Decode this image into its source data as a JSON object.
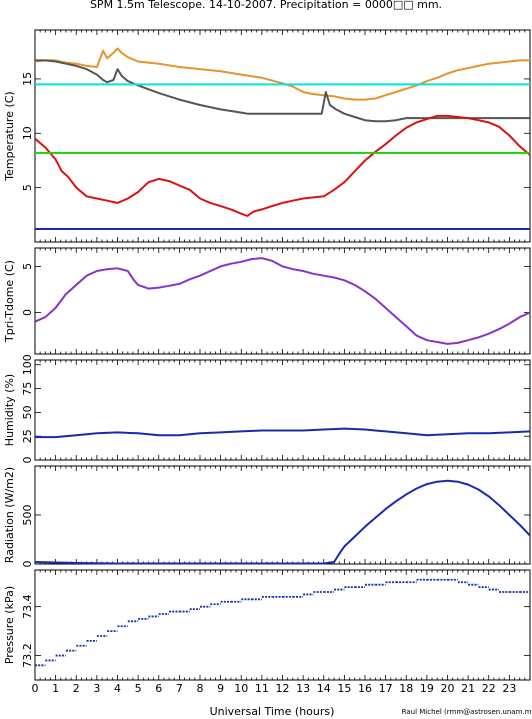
{
  "title": "SPM 1.5m Telescope. 14-10-2007. Precipitation = 0000□□ mm.",
  "xlabel": "Universal Time (hours)",
  "credit": "Raul Michel (rmm@astrosen.unam.mx)",
  "x_ticks": [
    0,
    1,
    2,
    3,
    4,
    5,
    6,
    7,
    8,
    9,
    10,
    11,
    12,
    13,
    14,
    15,
    16,
    17,
    18,
    19,
    20,
    21,
    22,
    23
  ],
  "chart_data": [
    {
      "type": "line",
      "ylabel": "Temperature (C)",
      "xlim": [
        0,
        24
      ],
      "ylim": [
        0,
        19.5
      ],
      "y_ticks": [
        5,
        10,
        15
      ],
      "series": [
        {
          "color": "#e8922a",
          "x": [
            0,
            0.5,
            1,
            1.5,
            2,
            2.5,
            3,
            3.3,
            3.5,
            3.8,
            4,
            4.2,
            4.5,
            5,
            6,
            7,
            8,
            9,
            10,
            11,
            12,
            12.5,
            13,
            13.5,
            14,
            14.5,
            15,
            15.5,
            16,
            16.5,
            17,
            17.5,
            18,
            18.5,
            19,
            19.5,
            20,
            20.5,
            21,
            21.5,
            22,
            22.5,
            23,
            23.5,
            24
          ],
          "y": [
            16.6,
            16.7,
            16.7,
            16.5,
            16.4,
            16.2,
            16.1,
            17.6,
            16.9,
            17.4,
            17.8,
            17.4,
            17.0,
            16.6,
            16.4,
            16.1,
            15.9,
            15.7,
            15.4,
            15.1,
            14.6,
            14.3,
            13.8,
            13.6,
            13.5,
            13.4,
            13.2,
            13.1,
            13.1,
            13.2,
            13.5,
            13.8,
            14.1,
            14.4,
            14.8,
            15.1,
            15.5,
            15.8,
            16.0,
            16.2,
            16.4,
            16.5,
            16.6,
            16.7,
            16.7
          ]
        },
        {
          "color": "#555555",
          "x": [
            0,
            0.5,
            1,
            1.5,
            2,
            2.5,
            3,
            3.3,
            3.5,
            3.8,
            4,
            4.2,
            4.5,
            5,
            6,
            7,
            8,
            9,
            10,
            10.3,
            11,
            12,
            13,
            13.5,
            13.9,
            14.1,
            14.3,
            14.6,
            15,
            15.5,
            16,
            16.5,
            17,
            17.5,
            18,
            19,
            20,
            21,
            22,
            23,
            24
          ],
          "y": [
            16.7,
            16.7,
            16.6,
            16.4,
            16.2,
            15.9,
            15.4,
            14.9,
            14.7,
            14.9,
            15.9,
            15.3,
            14.8,
            14.4,
            13.7,
            13.1,
            12.6,
            12.2,
            11.9,
            11.8,
            11.8,
            11.8,
            11.8,
            11.8,
            11.8,
            13.8,
            12.6,
            12.2,
            11.8,
            11.5,
            11.2,
            11.1,
            11.1,
            11.2,
            11.4,
            11.4,
            11.4,
            11.4,
            11.4,
            11.4,
            11.4
          ]
        },
        {
          "color": "#00e5e5",
          "x": [
            0,
            24
          ],
          "y": [
            14.5,
            14.5
          ]
        },
        {
          "color": "#dd1111",
          "x": [
            0,
            0.5,
            1,
            1.3,
            1.6,
            2,
            2.5,
            3,
            3.5,
            4,
            4.5,
            5,
            5.5,
            6,
            6.5,
            7,
            7.5,
            8,
            8.5,
            9,
            9.5,
            10,
            10.3,
            10.6,
            11,
            11.5,
            12,
            12.5,
            13,
            13.5,
            14,
            14.5,
            15,
            15.5,
            16,
            16.5,
            17,
            17.5,
            18,
            18.5,
            19,
            19.5,
            20,
            20.5,
            21,
            21.5,
            22,
            22.5,
            23,
            23.5,
            24
          ],
          "y": [
            9.5,
            8.7,
            7.6,
            6.5,
            6.0,
            5.0,
            4.2,
            4.0,
            3.8,
            3.6,
            4.0,
            4.6,
            5.5,
            5.8,
            5.6,
            5.2,
            4.8,
            4.0,
            3.6,
            3.3,
            3.0,
            2.6,
            2.4,
            2.8,
            3.0,
            3.3,
            3.6,
            3.8,
            4.0,
            4.1,
            4.2,
            4.8,
            5.5,
            6.5,
            7.5,
            8.3,
            9.0,
            9.8,
            10.5,
            11.0,
            11.3,
            11.6,
            11.6,
            11.5,
            11.4,
            11.2,
            11.0,
            10.6,
            9.8,
            8.8,
            8.0
          ]
        },
        {
          "color": "#22cc11",
          "x": [
            0,
            24
          ],
          "y": [
            8.2,
            8.2
          ]
        },
        {
          "color": "#1a2ab0",
          "x": [
            0,
            24
          ],
          "y": [
            1.2,
            1.2
          ]
        }
      ]
    },
    {
      "type": "line",
      "ylabel": "Tpri-Tdome (C)",
      "xlim": [
        0,
        24
      ],
      "ylim": [
        -4.5,
        7
      ],
      "y_ticks": [
        0,
        5
      ],
      "series": [
        {
          "color": "#8833cc",
          "x": [
            0,
            0.5,
            1,
            1.5,
            2,
            2.5,
            3,
            3.5,
            4,
            4.5,
            4.8,
            5,
            5.5,
            6,
            6.5,
            7,
            7.5,
            8,
            8.5,
            9,
            9.5,
            10,
            10.5,
            11,
            11.5,
            12,
            12.5,
            13,
            13.5,
            14,
            14.5,
            15,
            15.5,
            16,
            16.5,
            17,
            17.5,
            18,
            18.5,
            19,
            19.5,
            20,
            20.5,
            21,
            21.5,
            22,
            22.5,
            23,
            23.5,
            24
          ],
          "y": [
            -1.0,
            -0.5,
            0.5,
            2.0,
            3.0,
            4.0,
            4.5,
            4.7,
            4.8,
            4.5,
            3.5,
            3.0,
            2.6,
            2.7,
            2.9,
            3.1,
            3.6,
            4.0,
            4.5,
            5.0,
            5.3,
            5.5,
            5.8,
            5.9,
            5.6,
            5.0,
            4.7,
            4.5,
            4.2,
            4.0,
            3.8,
            3.5,
            3.0,
            2.3,
            1.5,
            0.5,
            -0.5,
            -1.5,
            -2.5,
            -3.0,
            -3.2,
            -3.4,
            -3.3,
            -3.0,
            -2.7,
            -2.3,
            -1.8,
            -1.2,
            -0.5,
            0.0
          ]
        }
      ]
    },
    {
      "type": "line",
      "ylabel": "Humidity (%)",
      "xlim": [
        0,
        24
      ],
      "ylim": [
        0,
        105
      ],
      "y_ticks": [
        0,
        25,
        50,
        75,
        100
      ],
      "series": [
        {
          "color": "#1a2ab0",
          "x": [
            0,
            1,
            2,
            3,
            4,
            5,
            6,
            7,
            8,
            9,
            10,
            11,
            12,
            13,
            14,
            15,
            16,
            17,
            18,
            19,
            20,
            21,
            22,
            23,
            24
          ],
          "y": [
            24,
            24,
            26,
            28,
            29,
            28,
            26,
            26,
            28,
            29,
            30,
            31,
            31,
            31,
            32,
            33,
            32,
            30,
            28,
            26,
            27,
            28,
            28,
            29,
            30
          ]
        }
      ]
    },
    {
      "type": "line",
      "ylabel": "Radiation (W/m2)",
      "xlim": [
        0,
        24
      ],
      "ylim": [
        0,
        1000
      ],
      "y_ticks": [
        0,
        500
      ],
      "series": [
        {
          "color": "#1a2ab0",
          "x": [
            0,
            1,
            2,
            3,
            4,
            5,
            6,
            7,
            8,
            9,
            10,
            11,
            12,
            13,
            14,
            14.5,
            14.8,
            15,
            15.5,
            16,
            16.5,
            17,
            17.5,
            18,
            18.5,
            19,
            19.5,
            20,
            20.5,
            21,
            21.5,
            22,
            22.5,
            23,
            23.5,
            24
          ],
          "y": [
            20,
            15,
            10,
            8,
            5,
            5,
            5,
            5,
            5,
            5,
            5,
            5,
            5,
            5,
            5,
            20,
            120,
            180,
            280,
            380,
            470,
            560,
            640,
            710,
            770,
            815,
            840,
            850,
            840,
            810,
            760,
            690,
            600,
            500,
            400,
            290
          ]
        }
      ]
    },
    {
      "type": "scatter",
      "ylabel": "Pressure (kPa)",
      "xlim": [
        0,
        24
      ],
      "ylim": [
        73.1,
        73.55
      ],
      "y_ticks": [
        73.2,
        73.4
      ],
      "series": [
        {
          "color": "#1a2ab0",
          "x": [
            0,
            0.5,
            1,
            1.5,
            2,
            2.5,
            3,
            3.5,
            4,
            4.5,
            5,
            5.5,
            6,
            6.5,
            7,
            7.5,
            8,
            8.5,
            9,
            9.5,
            10,
            10.5,
            11,
            11.5,
            12,
            12.5,
            13,
            13.5,
            14,
            14.5,
            15,
            15.5,
            16,
            16.5,
            17,
            17.5,
            18,
            18.5,
            19,
            19.5,
            20,
            20.5,
            21,
            21.5,
            22,
            22.5,
            23,
            23.5,
            24
          ],
          "y": [
            73.16,
            73.18,
            73.2,
            73.22,
            73.24,
            73.26,
            73.28,
            73.3,
            73.32,
            73.34,
            73.35,
            73.36,
            73.37,
            73.38,
            73.38,
            73.39,
            73.4,
            73.41,
            73.42,
            73.42,
            73.43,
            73.43,
            73.44,
            73.44,
            73.44,
            73.44,
            73.45,
            73.46,
            73.46,
            73.47,
            73.48,
            73.48,
            73.49,
            73.49,
            73.5,
            73.5,
            73.5,
            73.51,
            73.51,
            73.51,
            73.51,
            73.5,
            73.49,
            73.48,
            73.47,
            73.46,
            73.46,
            73.46,
            73.47
          ]
        }
      ]
    }
  ]
}
